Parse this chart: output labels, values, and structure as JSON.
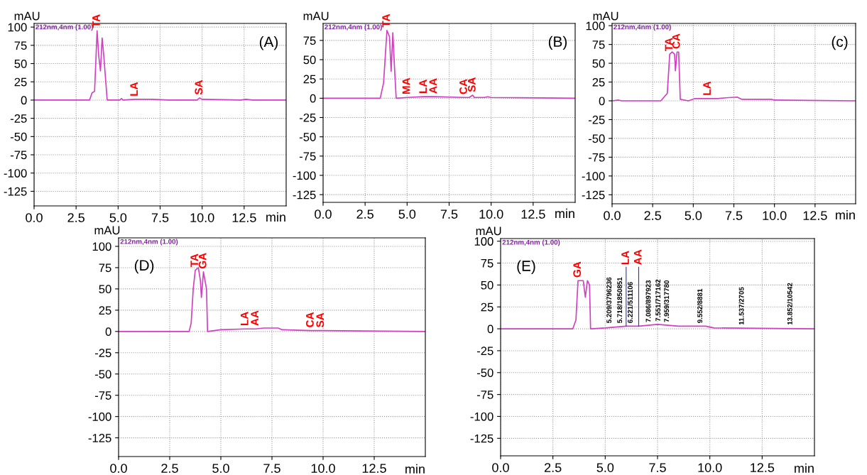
{
  "chart_data": [
    {
      "type": "line",
      "title": "(A)",
      "xlabel": "min",
      "ylabel": "mAU",
      "grid": true,
      "xlim": [
        0,
        15
      ],
      "ylim": [
        -145,
        105
      ],
      "xticks": [
        {
          "value": 0,
          "label": "0.0"
        },
        {
          "value": 2.5,
          "label": "2.5"
        },
        {
          "value": 5,
          "label": "5.0"
        },
        {
          "value": 7.5,
          "label": "7.5"
        },
        {
          "value": 10,
          "label": "10.0"
        },
        {
          "value": 12.5,
          "label": "12.5"
        }
      ],
      "yticks": [
        -125,
        -100,
        -75,
        -50,
        -25,
        0,
        25,
        50,
        75,
        100
      ],
      "x": [
        0,
        3.3,
        3.45,
        3.6,
        3.75,
        3.85,
        3.95,
        4.05,
        4.15,
        4.25,
        4.35,
        5.1,
        5.2,
        5.3,
        6.0,
        7.0,
        8.0,
        9.7,
        9.85,
        10.0,
        12.3,
        12.6,
        13.0,
        15
      ],
      "series": [
        {
          "color": "#d040c0",
          "values": [
            0,
            0,
            10,
            12,
            95,
            60,
            40,
            85,
            60,
            30,
            0,
            0,
            2,
            0,
            1,
            1,
            0,
            0,
            3,
            1,
            0,
            1,
            0,
            0
          ]
        }
      ],
      "annotations": [
        "212nm,4nm (1.00)",
        {
          "text": "TA",
          "x": 3.75,
          "y": 95
        },
        {
          "text": "LA",
          "x": 6.0,
          "y": 1
        },
        {
          "text": "SA",
          "x": 9.85,
          "y": 3
        }
      ]
    },
    {
      "type": "line",
      "title": "(B)",
      "xlabel": "min",
      "ylabel": "mAU",
      "grid": true,
      "xlim": [
        0,
        15
      ],
      "ylim": [
        -135,
        97
      ],
      "xticks": [
        {
          "value": 0,
          "label": "0.0"
        },
        {
          "value": 2.5,
          "label": "2.5"
        },
        {
          "value": 5,
          "label": "5.0"
        },
        {
          "value": 7.5,
          "label": "7.5"
        },
        {
          "value": 10,
          "label": "10.0"
        },
        {
          "value": 12.5,
          "label": "12.5"
        }
      ],
      "yticks": [
        -125,
        -100,
        -75,
        -50,
        -25,
        0,
        25,
        50,
        75
      ],
      "x": [
        0,
        3.4,
        3.6,
        3.8,
        3.95,
        4.05,
        4.15,
        4.25,
        4.35,
        5.0,
        6.0,
        6.6,
        8.4,
        8.7,
        8.9,
        9.0,
        9.6,
        9.8,
        10.0,
        15
      ],
      "series": [
        {
          "color": "#d040c0",
          "values": [
            0,
            0,
            20,
            88,
            80,
            35,
            85,
            40,
            0,
            1,
            2,
            2,
            1,
            1,
            4,
            1,
            1,
            2,
            1,
            0
          ]
        }
      ],
      "annotations": [
        "212nm,4nm (1.00)",
        {
          "text": "TA",
          "x": 3.8,
          "y": 88
        },
        {
          "text": "MA",
          "x": 5.0,
          "y": 1
        },
        {
          "text": "LA",
          "x": 6.0,
          "y": 2
        },
        {
          "text": "AA",
          "x": 6.6,
          "y": 2
        },
        {
          "text": "CA",
          "x": 8.4,
          "y": 1
        },
        {
          "text": "SA",
          "x": 8.9,
          "y": 4
        }
      ]
    },
    {
      "type": "line",
      "title": "(c)",
      "xlabel": "min",
      "ylabel": "mAU",
      "grid": true,
      "xlim": [
        0,
        15
      ],
      "ylim": [
        -137,
        103
      ],
      "xticks": [
        {
          "value": 0,
          "label": "0.0"
        },
        {
          "value": 2.5,
          "label": "2.5"
        },
        {
          "value": 5,
          "label": "5.0"
        },
        {
          "value": 7.5,
          "label": "7.5"
        },
        {
          "value": 10,
          "label": "10.0"
        },
        {
          "value": 12.5,
          "label": "12.5"
        }
      ],
      "yticks": [
        -125,
        -100,
        -75,
        -50,
        -25,
        0,
        25,
        50,
        75,
        100
      ],
      "x": [
        0,
        0.4,
        0.6,
        3.0,
        3.4,
        3.55,
        3.7,
        3.85,
        3.9,
        4.0,
        4.1,
        4.2,
        4.7,
        5.1,
        5.9,
        6.5,
        7.0,
        7.7,
        8.0,
        9.8,
        10.0,
        15
      ],
      "series": [
        {
          "color": "#d040c0",
          "values": [
            0,
            1,
            0,
            0,
            10,
            62,
            65,
            62,
            40,
            65,
            65,
            2,
            0,
            3,
            3,
            3,
            4,
            5,
            2,
            2,
            1,
            0
          ]
        }
      ],
      "annotations": [
        "212nm,4nm (1.00)",
        {
          "text": "TA",
          "x": 3.55,
          "y": 62
        },
        {
          "text": "CA",
          "x": 4.0,
          "y": 65
        },
        {
          "text": "LA",
          "x": 5.9,
          "y": 3
        }
      ]
    },
    {
      "type": "line",
      "title": "(D)",
      "xlabel": "min",
      "ylabel": "mAU",
      "grid": true,
      "xlim": [
        0,
        15
      ],
      "ylim": [
        -147,
        110
      ],
      "xticks": [
        {
          "value": 0,
          "label": "0.0"
        },
        {
          "value": 2.5,
          "label": "2.5"
        },
        {
          "value": 5,
          "label": "5.0"
        },
        {
          "value": 7.5,
          "label": "7.5"
        },
        {
          "value": 10,
          "label": "10.0"
        },
        {
          "value": 12.5,
          "label": "12.5"
        }
      ],
      "yticks": [
        -125,
        -100,
        -75,
        -50,
        -25,
        0,
        25,
        50,
        75,
        100
      ],
      "x": [
        0,
        3.45,
        3.55,
        3.65,
        3.75,
        3.9,
        4.0,
        4.05,
        4.15,
        4.3,
        4.35,
        5.0,
        6.2,
        6.7,
        7.1,
        7.8,
        8.0,
        9.4,
        9.9,
        10.0,
        15
      ],
      "series": [
        {
          "color": "#d040c0",
          "values": [
            0,
            0,
            10,
            50,
            72,
            75,
            60,
            40,
            70,
            50,
            0,
            2,
            3,
            3,
            4,
            4,
            2,
            1,
            1,
            1,
            0
          ]
        }
      ],
      "annotations": [
        "212nm,4nm (1.00)",
        {
          "text": "TA",
          "x": 3.75,
          "y": 72
        },
        {
          "text": "GA",
          "x": 4.15,
          "y": 70
        },
        {
          "text": "LA",
          "x": 6.2,
          "y": 3
        },
        {
          "text": "AA",
          "x": 6.7,
          "y": 3
        },
        {
          "text": "CA",
          "x": 9.4,
          "y": 1
        },
        {
          "text": "SA",
          "x": 9.9,
          "y": 1
        }
      ]
    },
    {
      "type": "line",
      "title": "(E)",
      "xlabel": "min",
      "ylabel": "mAU",
      "grid": true,
      "xlim": [
        0,
        15
      ],
      "ylim": [
        -145,
        103
      ],
      "xticks": [
        {
          "value": 0,
          "label": "0.0"
        },
        {
          "value": 2.5,
          "label": "2.5"
        },
        {
          "value": 5,
          "label": "5.0"
        },
        {
          "value": 7.5,
          "label": "7.5"
        },
        {
          "value": 10,
          "label": "10.0"
        },
        {
          "value": 12.5,
          "label": "12.5"
        }
      ],
      "yticks": [
        -125,
        -100,
        -75,
        -50,
        -25,
        0,
        25,
        50,
        75,
        100
      ],
      "x": [
        0,
        3.45,
        3.6,
        3.7,
        3.95,
        4.05,
        4.15,
        4.25,
        4.3,
        5.0,
        6.0,
        6.6,
        7.5,
        8.5,
        9.8,
        10.2,
        15
      ],
      "series": [
        {
          "color": "#d040c0",
          "values": [
            0,
            0,
            10,
            55,
            55,
            36,
            55,
            50,
            0,
            1,
            3,
            3,
            5,
            3,
            3,
            1,
            0
          ]
        }
      ],
      "annotations": [
        "212nm,4nm (1.00)",
        {
          "text": "GA",
          "x": 3.7,
          "y": 55
        },
        {
          "text": "LA",
          "x": 6.0,
          "y": 3
        },
        {
          "text": "AA",
          "x": 6.6,
          "y": 3
        },
        {
          "text": "5.209/3796236",
          "x": 5.209,
          "y": 3
        },
        {
          "text": "5.718/1850851",
          "x": 5.718,
          "y": 3
        },
        {
          "text": "6.221/511106",
          "x": 6.221,
          "y": 3
        },
        {
          "text": "7.086/897923",
          "x": 7.086,
          "y": 4
        },
        {
          "text": "7.551/717162",
          "x": 7.551,
          "y": 5
        },
        {
          "text": "7.959/317780",
          "x": 7.959,
          "y": 4
        },
        {
          "text": "9.552/8881",
          "x": 9.552,
          "y": 3
        },
        {
          "text": "11.537/2705",
          "x": 11.537,
          "y": 1
        },
        {
          "text": "13.852/10542",
          "x": 13.852,
          "y": 1
        }
      ]
    }
  ]
}
